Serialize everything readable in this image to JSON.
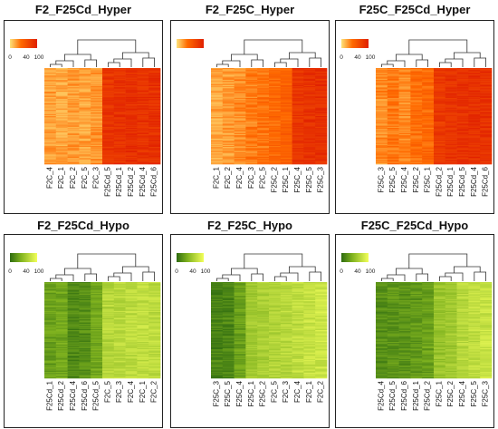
{
  "chart_data": [
    {
      "type": "heatmap",
      "title": "F2_F25Cd_Hyper",
      "legend": {
        "ticks": [
          "0",
          "40",
          "100"
        ],
        "colors": [
          "#fde27a",
          "#ff6a00",
          "#e02000"
        ]
      },
      "x": [
        "F2C_4",
        "F2C_1",
        "F2C_2",
        "F2C_5",
        "F2C_3",
        "F25Cd_5",
        "F25Cd_1",
        "F25Cd_2",
        "F25Cd_4",
        "F25Cd_6"
      ],
      "column_level": [
        22,
        20,
        24,
        21,
        26,
        84,
        86,
        88,
        85,
        87
      ],
      "dendrogram": "left cluster F2C, right cluster F25Cd"
    },
    {
      "type": "heatmap",
      "title": "F2_F25C_Hyper",
      "legend": {
        "ticks": [],
        "colors": [
          "#fde27a",
          "#ff6a00",
          "#e02000"
        ]
      },
      "x": [
        "F2C_1",
        "F2C_2",
        "F2C_4",
        "F2C_3",
        "F2C_5",
        "F25C_2",
        "F25C_1",
        "F25C_4",
        "F25C_5",
        "F25C_3"
      ],
      "column_level": [
        20,
        22,
        28,
        34,
        38,
        42,
        48,
        82,
        86,
        88
      ],
      "dendrogram": "left cluster F2C, right cluster F25C"
    },
    {
      "type": "heatmap",
      "title": "F25C_F25Cd_Hyper",
      "legend": {
        "ticks": [
          "0",
          "40",
          "100"
        ],
        "colors": [
          "#fde27a",
          "#ff6a00",
          "#e02000"
        ]
      },
      "x": [
        "F25C_3",
        "F25C_5",
        "F25C_4",
        "F25C_2",
        "F25C_1",
        "F25Cd_2",
        "F25Cd_1",
        "F25Cd_5",
        "F25Cd_4",
        "F25Cd_6"
      ],
      "column_level": [
        28,
        36,
        30,
        40,
        44,
        80,
        84,
        86,
        88,
        86
      ],
      "dendrogram": "left cluster F25C, right cluster F25Cd"
    },
    {
      "type": "heatmap",
      "title": "F2_F25Cd_Hypo",
      "legend": {
        "ticks": [
          "0",
          "40",
          "100"
        ],
        "colors": [
          "#2e6b10",
          "#7fb21e",
          "#f2ff5a"
        ]
      },
      "x": [
        "F25Cd_1",
        "F25Cd_2",
        "F25Cd_4",
        "F25Cd_6",
        "F25Cd_5",
        "F2C_5",
        "F2C_3",
        "F2C_4",
        "F2C_1",
        "F2C_2"
      ],
      "column_level": [
        30,
        34,
        16,
        20,
        34,
        68,
        70,
        72,
        74,
        72
      ],
      "dendrogram": "left cluster F25Cd, right cluster F2C"
    },
    {
      "type": "heatmap",
      "title": "F2_F25C_Hypo",
      "legend": {
        "ticks": [
          "0",
          "40",
          "100"
        ],
        "colors": [
          "#2e6b10",
          "#7fb21e",
          "#f2ff5a"
        ]
      },
      "x": [
        "F25C_3",
        "F25C_5",
        "F25C_4",
        "F25C_1",
        "F25C_2",
        "F2C_5",
        "F2C_3",
        "F2C_4",
        "F2C_1",
        "F2C_2"
      ],
      "column_level": [
        14,
        16,
        30,
        58,
        62,
        66,
        70,
        74,
        78,
        80
      ],
      "dendrogram": "left cluster F25C, right cluster F2C"
    },
    {
      "type": "heatmap",
      "title": "F25C_F25Cd_Hypo",
      "legend": {
        "ticks": [
          "0",
          "40",
          "100"
        ],
        "colors": [
          "#2e6b10",
          "#7fb21e",
          "#f2ff5a"
        ]
      },
      "x": [
        "F25Cd_4",
        "F25Cd_5",
        "F25Cd_6",
        "F25Cd_1",
        "F25Cd_2",
        "F25C_1",
        "F25C_2",
        "F25C_4",
        "F25C_5",
        "F25C_3"
      ],
      "column_level": [
        20,
        24,
        22,
        26,
        30,
        54,
        58,
        70,
        74,
        78
      ],
      "dendrogram": "left cluster F25Cd, right cluster F25C"
    }
  ]
}
